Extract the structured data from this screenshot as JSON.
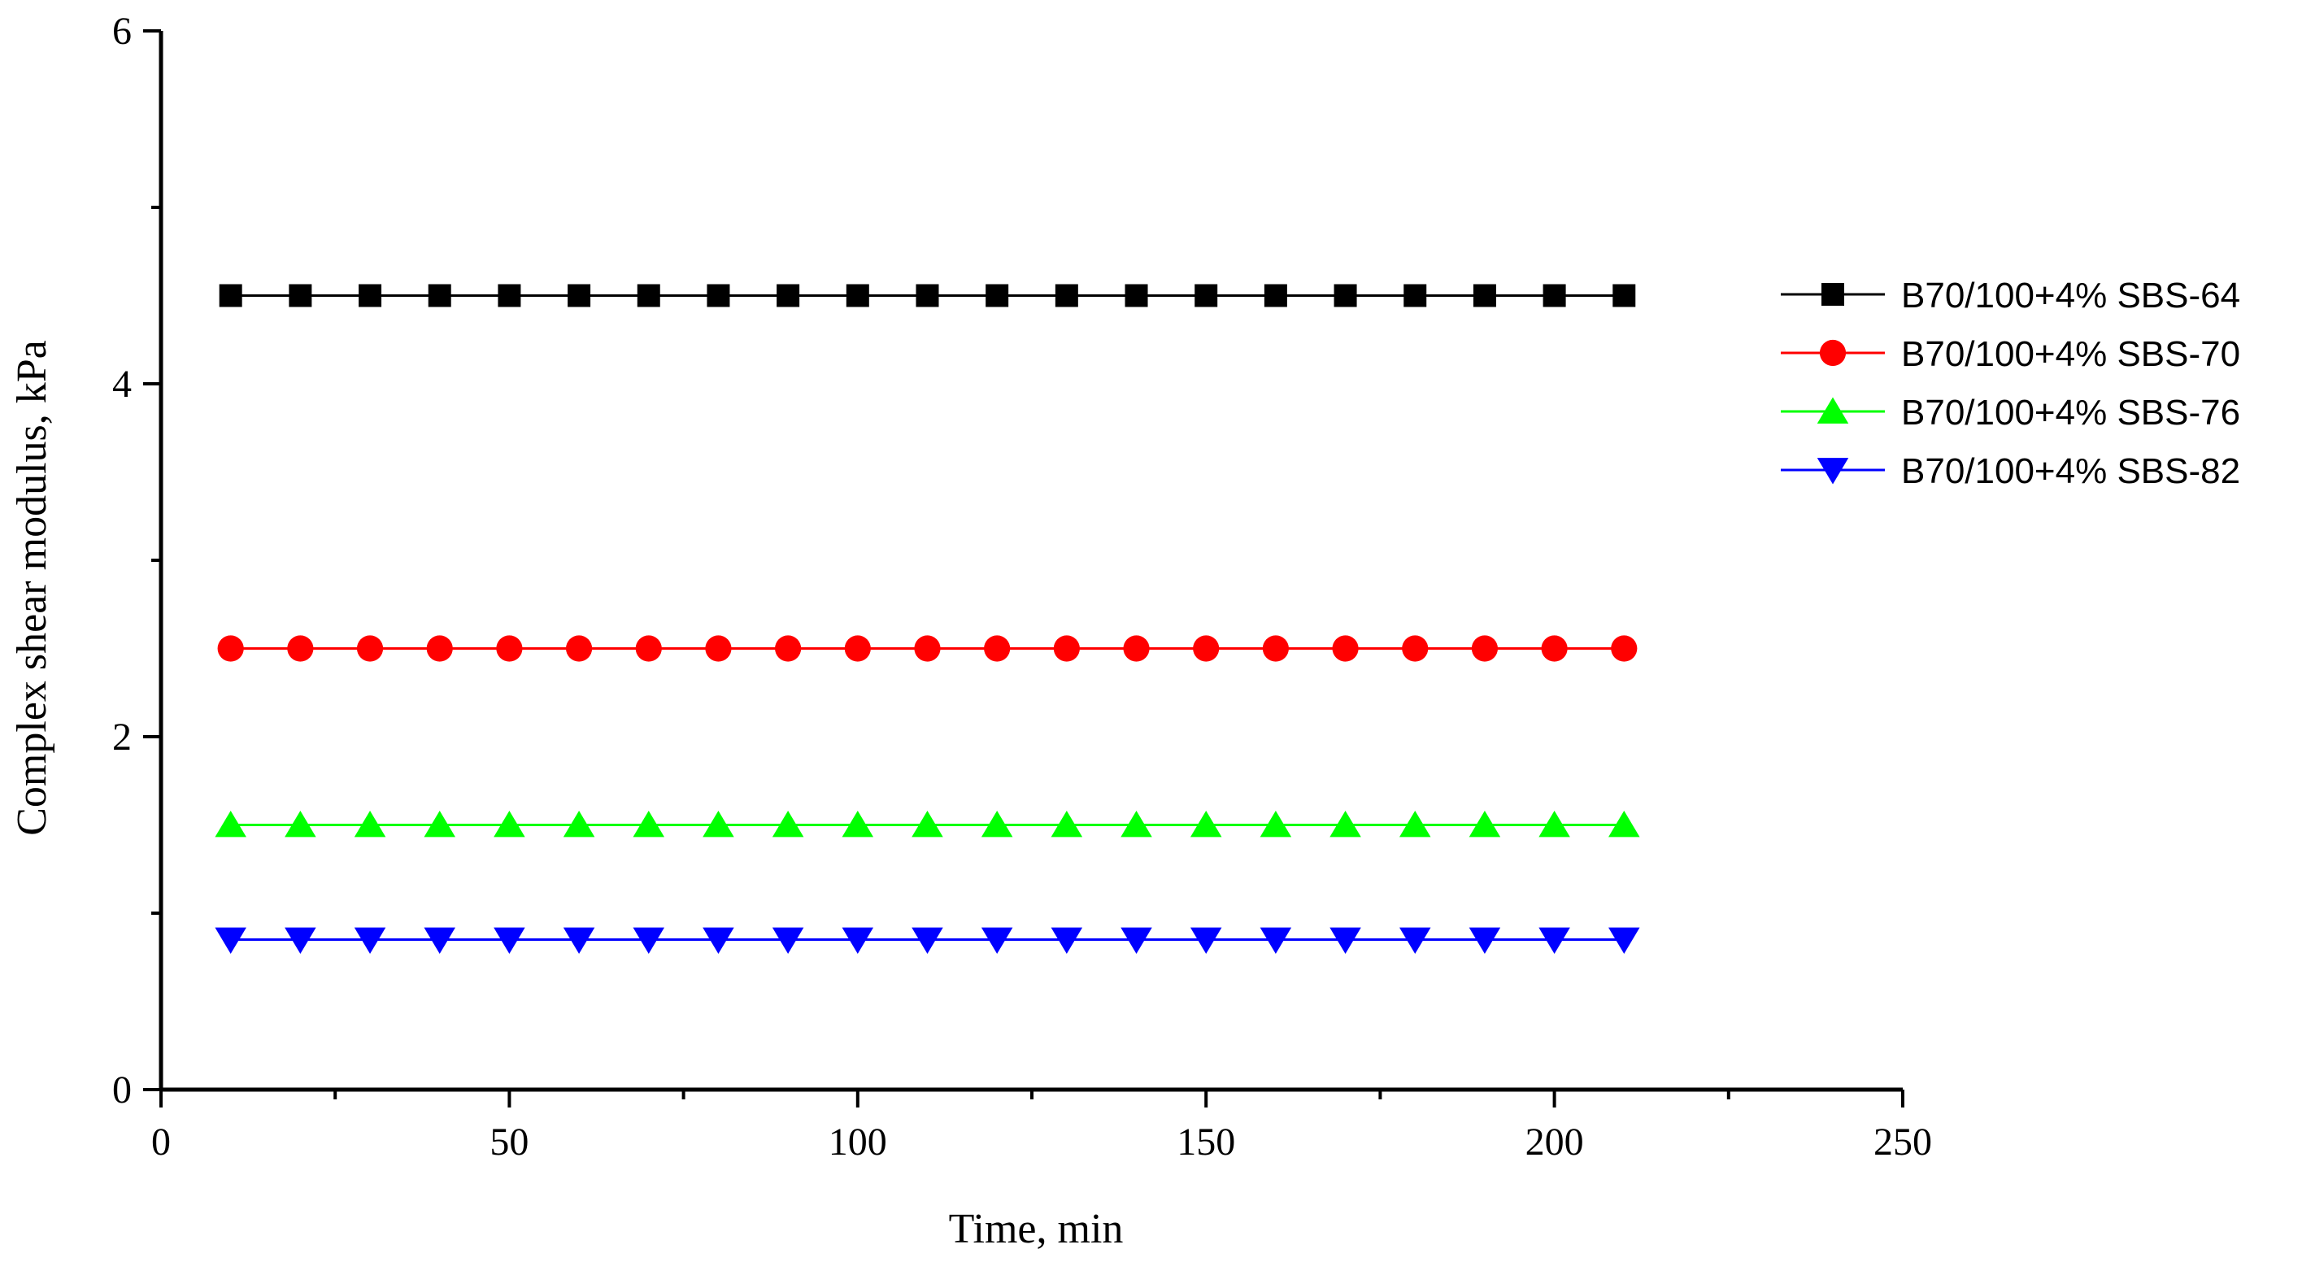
{
  "chart_data": {
    "type": "line",
    "title": "",
    "xlabel": "Time, min",
    "ylabel": "Complex shear modulus, kPa",
    "xlim": [
      0,
      250
    ],
    "ylim": [
      0,
      6
    ],
    "x_ticks": [
      0,
      50,
      100,
      150,
      200,
      250
    ],
    "y_ticks": [
      0,
      2,
      4,
      6
    ],
    "x_tick_labels": [
      "0",
      "50",
      "100",
      "150",
      "200",
      "250"
    ],
    "y_tick_labels": [
      "0",
      "2",
      "4",
      "6"
    ],
    "grid": false,
    "legend_position": "right",
    "x": [
      10,
      20,
      30,
      40,
      50,
      60,
      70,
      80,
      90,
      100,
      110,
      120,
      130,
      140,
      150,
      160,
      170,
      180,
      190,
      200,
      210
    ],
    "series": [
      {
        "name": "B70/100+4% SBS-64",
        "color": "#000000",
        "marker": "square",
        "values": [
          4.5,
          4.5,
          4.5,
          4.5,
          4.5,
          4.5,
          4.5,
          4.5,
          4.5,
          4.5,
          4.5,
          4.5,
          4.5,
          4.5,
          4.5,
          4.5,
          4.5,
          4.5,
          4.5,
          4.5,
          4.5
        ]
      },
      {
        "name": "B70/100+4% SBS-70",
        "color": "#ff0000",
        "marker": "circle",
        "values": [
          2.5,
          2.5,
          2.5,
          2.5,
          2.5,
          2.5,
          2.5,
          2.5,
          2.5,
          2.5,
          2.5,
          2.5,
          2.5,
          2.5,
          2.5,
          2.5,
          2.5,
          2.5,
          2.5,
          2.5,
          2.5
        ]
      },
      {
        "name": "B70/100+4% SBS-76",
        "color": "#00ff00",
        "marker": "triangle-up",
        "values": [
          1.5,
          1.5,
          1.5,
          1.5,
          1.5,
          1.5,
          1.5,
          1.5,
          1.5,
          1.5,
          1.5,
          1.5,
          1.5,
          1.5,
          1.5,
          1.5,
          1.5,
          1.5,
          1.5,
          1.5,
          1.5
        ]
      },
      {
        "name": "B70/100+4% SBS-82",
        "color": "#0000ff",
        "marker": "triangle-down",
        "values": [
          0.85,
          0.85,
          0.85,
          0.85,
          0.85,
          0.85,
          0.85,
          0.85,
          0.85,
          0.85,
          0.85,
          0.85,
          0.85,
          0.85,
          0.85,
          0.85,
          0.85,
          0.85,
          0.85,
          0.85,
          0.85
        ]
      }
    ]
  }
}
